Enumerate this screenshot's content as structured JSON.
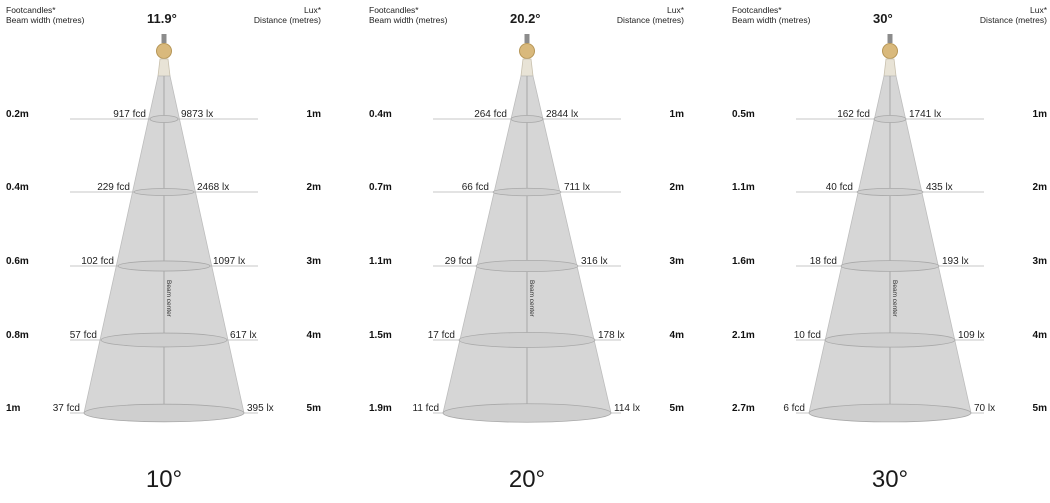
{
  "headers": {
    "left_line1": "Footcandles*",
    "left_line2": "Beam width (metres)",
    "right_line1": "Lux*",
    "right_line2": "Distance (metres)",
    "beam_center": "Beam center"
  },
  "panels": [
    {
      "peak": "11.9°",
      "angle_label": "10°",
      "rows": [
        {
          "width": "0.2m",
          "fcd": "917 fcd",
          "lux": "9873 lx",
          "distance": "1m"
        },
        {
          "width": "0.4m",
          "fcd": "229 fcd",
          "lux": "2468 lx",
          "distance": "2m"
        },
        {
          "width": "0.6m",
          "fcd": "102 fcd",
          "lux": "1097 lx",
          "distance": "3m"
        },
        {
          "width": "0.8m",
          "fcd": "57 fcd",
          "lux": "617 lx",
          "distance": "4m"
        },
        {
          "width": "1m",
          "fcd": "37 fcd",
          "lux": "395 lx",
          "distance": "5m"
        }
      ]
    },
    {
      "peak": "20.2°",
      "angle_label": "20°",
      "rows": [
        {
          "width": "0.4m",
          "fcd": "264 fcd",
          "lux": "2844 lx",
          "distance": "1m"
        },
        {
          "width": "0.7m",
          "fcd": "66 fcd",
          "lux": "711 lx",
          "distance": "2m"
        },
        {
          "width": "1.1m",
          "fcd": "29 fcd",
          "lux": "316 lx",
          "distance": "3m"
        },
        {
          "width": "1.5m",
          "fcd": "17 fcd",
          "lux": "178 lx",
          "distance": "4m"
        },
        {
          "width": "1.9m",
          "fcd": "11 fcd",
          "lux": "114 lx",
          "distance": "5m"
        }
      ]
    },
    {
      "peak": "30°",
      "angle_label": "30°",
      "rows": [
        {
          "width": "0.5m",
          "fcd": "162 fcd",
          "lux": "1741 lx",
          "distance": "1m"
        },
        {
          "width": "1.1m",
          "fcd": "40 fcd",
          "lux": "435 lx",
          "distance": "2m"
        },
        {
          "width": "1.6m",
          "fcd": "18 fcd",
          "lux": "193 lx",
          "distance": "3m"
        },
        {
          "width": "2.1m",
          "fcd": "10 fcd",
          "lux": "109 lx",
          "distance": "4m"
        },
        {
          "width": "2.7m",
          "fcd": "6 fcd",
          "lux": "70 lx",
          "distance": "5m"
        }
      ]
    }
  ]
}
